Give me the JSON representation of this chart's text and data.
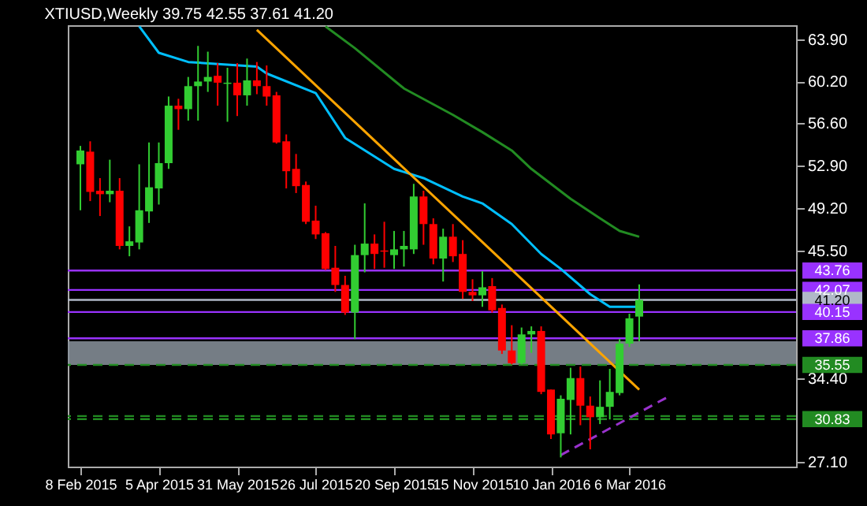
{
  "chart_data": {
    "type": "candlestick",
    "title": "XTIUSD,Weekly  39.75 42.55 37.61 41.20",
    "x": [
      "2015-02-08",
      "2015-02-15",
      "2015-02-22",
      "2015-03-01",
      "2015-03-08",
      "2015-03-15",
      "2015-03-22",
      "2015-03-29",
      "2015-04-05",
      "2015-04-12",
      "2015-04-19",
      "2015-04-26",
      "2015-05-03",
      "2015-05-10",
      "2015-05-17",
      "2015-05-24",
      "2015-05-31",
      "2015-06-07",
      "2015-06-14",
      "2015-06-21",
      "2015-06-28",
      "2015-07-05",
      "2015-07-12",
      "2015-07-19",
      "2015-07-26",
      "2015-08-02",
      "2015-08-09",
      "2015-08-16",
      "2015-08-23",
      "2015-08-30",
      "2015-09-06",
      "2015-09-13",
      "2015-09-20",
      "2015-09-27",
      "2015-10-04",
      "2015-10-11",
      "2015-10-18",
      "2015-10-25",
      "2015-11-01",
      "2015-11-08",
      "2015-11-15",
      "2015-11-22",
      "2015-11-29",
      "2015-12-06",
      "2015-12-13",
      "2015-12-20",
      "2015-12-27",
      "2016-01-03",
      "2016-01-10",
      "2016-01-17",
      "2016-01-24",
      "2016-01-31",
      "2016-02-07",
      "2016-02-14",
      "2016-02-21",
      "2016-02-28",
      "2016-03-06",
      "2016-03-13"
    ],
    "ohlc": [
      [
        53.0,
        54.6,
        49.0,
        54.2
      ],
      [
        54.1,
        55.0,
        49.8,
        50.6
      ],
      [
        50.7,
        51.8,
        48.5,
        50.4
      ],
      [
        50.4,
        53.4,
        49.7,
        50.7
      ],
      [
        50.7,
        51.8,
        45.6,
        45.9
      ],
      [
        45.9,
        47.6,
        45.0,
        46.3
      ],
      [
        46.2,
        53.0,
        45.6,
        49.0
      ],
      [
        48.9,
        54.9,
        47.9,
        51.0
      ],
      [
        50.9,
        54.9,
        49.5,
        53.1
      ],
      [
        53.1,
        58.9,
        52.6,
        58.1
      ],
      [
        58.1,
        58.7,
        56.0,
        57.8
      ],
      [
        57.8,
        60.6,
        56.8,
        59.8
      ],
      [
        59.8,
        63.3,
        56.8,
        60.2
      ],
      [
        60.2,
        62.8,
        59.3,
        60.6
      ],
      [
        60.7,
        61.8,
        58.1,
        60.1
      ],
      [
        60.0,
        61.4,
        56.7,
        60.1
      ],
      [
        60.1,
        61.8,
        57.2,
        59.0
      ],
      [
        59.0,
        62.2,
        58.1,
        60.3
      ],
      [
        60.3,
        61.9,
        59.1,
        59.8
      ],
      [
        59.8,
        61.6,
        58.1,
        58.9
      ],
      [
        59.0,
        59.3,
        54.8,
        54.9
      ],
      [
        55.0,
        55.6,
        50.9,
        52.4
      ],
      [
        52.6,
        53.9,
        50.5,
        51.1
      ],
      [
        51.2,
        51.5,
        47.8,
        48.0
      ],
      [
        48.1,
        49.4,
        46.5,
        46.9
      ],
      [
        47.0,
        47.1,
        43.8,
        43.9
      ],
      [
        44.0,
        45.9,
        41.9,
        42.5
      ],
      [
        42.5,
        43.3,
        39.9,
        40.1
      ],
      [
        40.1,
        46.0,
        37.8,
        45.1
      ],
      [
        45.1,
        49.6,
        43.6,
        46.1
      ],
      [
        46.1,
        46.9,
        43.9,
        45.2
      ],
      [
        45.5,
        48.0,
        44.0,
        45.4
      ],
      [
        45.1,
        47.2,
        43.9,
        45.6
      ],
      [
        45.6,
        47.2,
        44.1,
        45.9
      ],
      [
        45.6,
        51.3,
        45.2,
        50.2
      ],
      [
        50.2,
        50.7,
        46.0,
        47.8
      ],
      [
        47.8,
        48.3,
        44.3,
        44.8
      ],
      [
        44.8,
        47.4,
        42.8,
        46.7
      ],
      [
        46.7,
        47.8,
        44.5,
        45.0
      ],
      [
        45.2,
        46.4,
        41.3,
        41.9
      ],
      [
        41.9,
        43.0,
        41.1,
        41.6
      ],
      [
        41.6,
        43.7,
        40.6,
        42.3
      ],
      [
        42.4,
        43.1,
        40.1,
        40.3
      ],
      [
        40.5,
        40.8,
        36.5,
        36.8
      ],
      [
        36.8,
        39.0,
        35.6,
        35.7
      ],
      [
        35.7,
        38.8,
        35.6,
        38.2
      ],
      [
        38.2,
        38.9,
        36.6,
        38.5
      ],
      [
        38.5,
        38.9,
        33.0,
        33.2
      ],
      [
        33.4,
        33.4,
        29.1,
        29.5
      ],
      [
        29.6,
        32.9,
        27.5,
        32.6
      ],
      [
        32.5,
        35.3,
        29.5,
        34.4
      ],
      [
        34.4,
        35.4,
        30.3,
        32.0
      ],
      [
        32.0,
        32.8,
        28.2,
        31.0
      ],
      [
        31.0,
        34.2,
        30.4,
        31.9
      ],
      [
        31.9,
        35.2,
        30.8,
        33.2
      ],
      [
        33.1,
        37.8,
        32.9,
        37.4
      ],
      [
        37.4,
        40.0,
        37.1,
        39.6
      ],
      [
        39.75,
        42.55,
        37.61,
        41.2
      ]
    ],
    "colors": [
      "#32cd32",
      "#ff0000",
      "#ff0000",
      "#32cd32",
      "#ff0000",
      "#32cd32",
      "#32cd32",
      "#32cd32",
      "#32cd32",
      "#32cd32",
      "#ff0000",
      "#32cd32",
      "#32cd32",
      "#32cd32",
      "#ff0000",
      "#32cd32",
      "#ff0000",
      "#32cd32",
      "#ff0000",
      "#ff0000",
      "#ff0000",
      "#ff0000",
      "#ff0000",
      "#ff0000",
      "#ff0000",
      "#ff0000",
      "#ff0000",
      "#ff0000",
      "#32cd32",
      "#32cd32",
      "#ff0000",
      "#ff0000",
      "#32cd32",
      "#32cd32",
      "#32cd32",
      "#ff0000",
      "#ff0000",
      "#32cd32",
      "#ff0000",
      "#ff0000",
      "#ff0000",
      "#32cd32",
      "#ff0000",
      "#ff0000",
      "#ff0000",
      "#32cd32",
      "#32cd32",
      "#ff0000",
      "#ff0000",
      "#32cd32",
      "#32cd32",
      "#ff0000",
      "#ff0000",
      "#32cd32",
      "#32cd32",
      "#32cd32",
      "#32cd32",
      "#32cd32"
    ],
    "series": [
      {
        "type": "line",
        "color": "#00bfff",
        "x": [
          "2015-03-22",
          "2015-04-05",
          "2015-04-26",
          "2015-06-14",
          "2015-06-21",
          "2015-07-26",
          "2015-08-16",
          "2015-09-20",
          "2015-10-11",
          "2015-11-08",
          "2015-11-22",
          "2015-12-13",
          "2016-01-03",
          "2016-01-17",
          "2016-02-07",
          "2016-02-21",
          "2016-03-13"
        ],
        "values": [
          65.0,
          62.7,
          61.9,
          61.5,
          60.9,
          59.2,
          55.3,
          52.6,
          51.8,
          50.2,
          49.6,
          47.8,
          45.2,
          43.9,
          41.7,
          40.6,
          40.6
        ]
      },
      {
        "type": "line",
        "color": "#ffa500",
        "x": [
          "2015-06-14",
          "2016-03-13"
        ],
        "values": [
          64.7,
          33.4
        ]
      },
      {
        "type": "line",
        "color": "#228b22",
        "x": [
          "2015-08-02",
          "2015-08-23",
          "2015-09-27",
          "2015-11-01",
          "2015-11-22",
          "2015-12-13",
          "2015-12-27",
          "2016-01-10",
          "2016-01-24",
          "2016-02-14",
          "2016-02-28",
          "2016-03-13"
        ],
        "values": [
          65.0,
          63.1,
          59.6,
          57.3,
          55.8,
          54.2,
          52.6,
          51.3,
          50.0,
          48.3,
          47.2,
          46.7
        ]
      },
      {
        "type": "line",
        "color": "#9932cc",
        "line_style": "dashed",
        "x": [
          "2016-01-17",
          "2016-04-03"
        ],
        "values": [
          27.7,
          32.8
        ]
      }
    ],
    "xlim": [
      "2015-01-30",
      "2016-07-03"
    ],
    "xticks": [
      {
        "value": "2015-02-08",
        "label": "8 Feb 2015"
      },
      {
        "value": "2015-04-05",
        "label": "5 Apr 2015"
      },
      {
        "value": "2015-05-31",
        "label": "31 May 2015"
      },
      {
        "value": "2015-07-26",
        "label": "26 Jul 2015"
      },
      {
        "value": "2015-09-20",
        "label": "20 Sep 2015"
      },
      {
        "value": "2015-11-15",
        "label": "15 Nov 2015"
      },
      {
        "value": "2016-01-10",
        "label": "10 Jan 2016"
      },
      {
        "value": "2016-03-06",
        "label": "6 Mar 2016"
      }
    ],
    "ylim": [
      26.7,
      65.1
    ],
    "yticks": [
      {
        "value": 63.9,
        "label": "63.90"
      },
      {
        "value": 60.2,
        "label": "60.20"
      },
      {
        "value": 56.6,
        "label": "56.60"
      },
      {
        "value": 52.9,
        "label": "52.90"
      },
      {
        "value": 49.2,
        "label": "49.20"
      },
      {
        "value": 45.5,
        "label": "45.50"
      },
      {
        "value": 34.4,
        "label": "34.40"
      },
      {
        "value": 27.1,
        "label": "27.10"
      }
    ],
    "ref_lines": [
      {
        "axis": "y",
        "value": 43.76,
        "label": "43.76",
        "color": "#9932ff"
      },
      {
        "axis": "y",
        "value": 42.07,
        "label": "42.07",
        "color": "#9932ff"
      },
      {
        "axis": "y",
        "value": 41.2,
        "label": "41.20",
        "color": "#b0b8c8"
      },
      {
        "axis": "y",
        "value": 40.15,
        "label": "40.15",
        "color": "#9932ff"
      },
      {
        "axis": "y",
        "value": 37.86,
        "label": "37.86",
        "color": "#9932ff"
      },
      {
        "axis": "y",
        "value": 35.55,
        "label": "35.55",
        "color": "#228b22",
        "line_style": "dashed"
      },
      {
        "axis": "y",
        "value": 31.1,
        "color": "#228b22",
        "line_style": "dashed"
      },
      {
        "axis": "y",
        "value": 30.83,
        "label": "30.83",
        "color": "#228b22",
        "line_style": "dashed"
      }
    ],
    "bands": [
      {
        "axis": "y",
        "from": 35.55,
        "to": 37.6,
        "color": "#8a939c"
      }
    ]
  }
}
